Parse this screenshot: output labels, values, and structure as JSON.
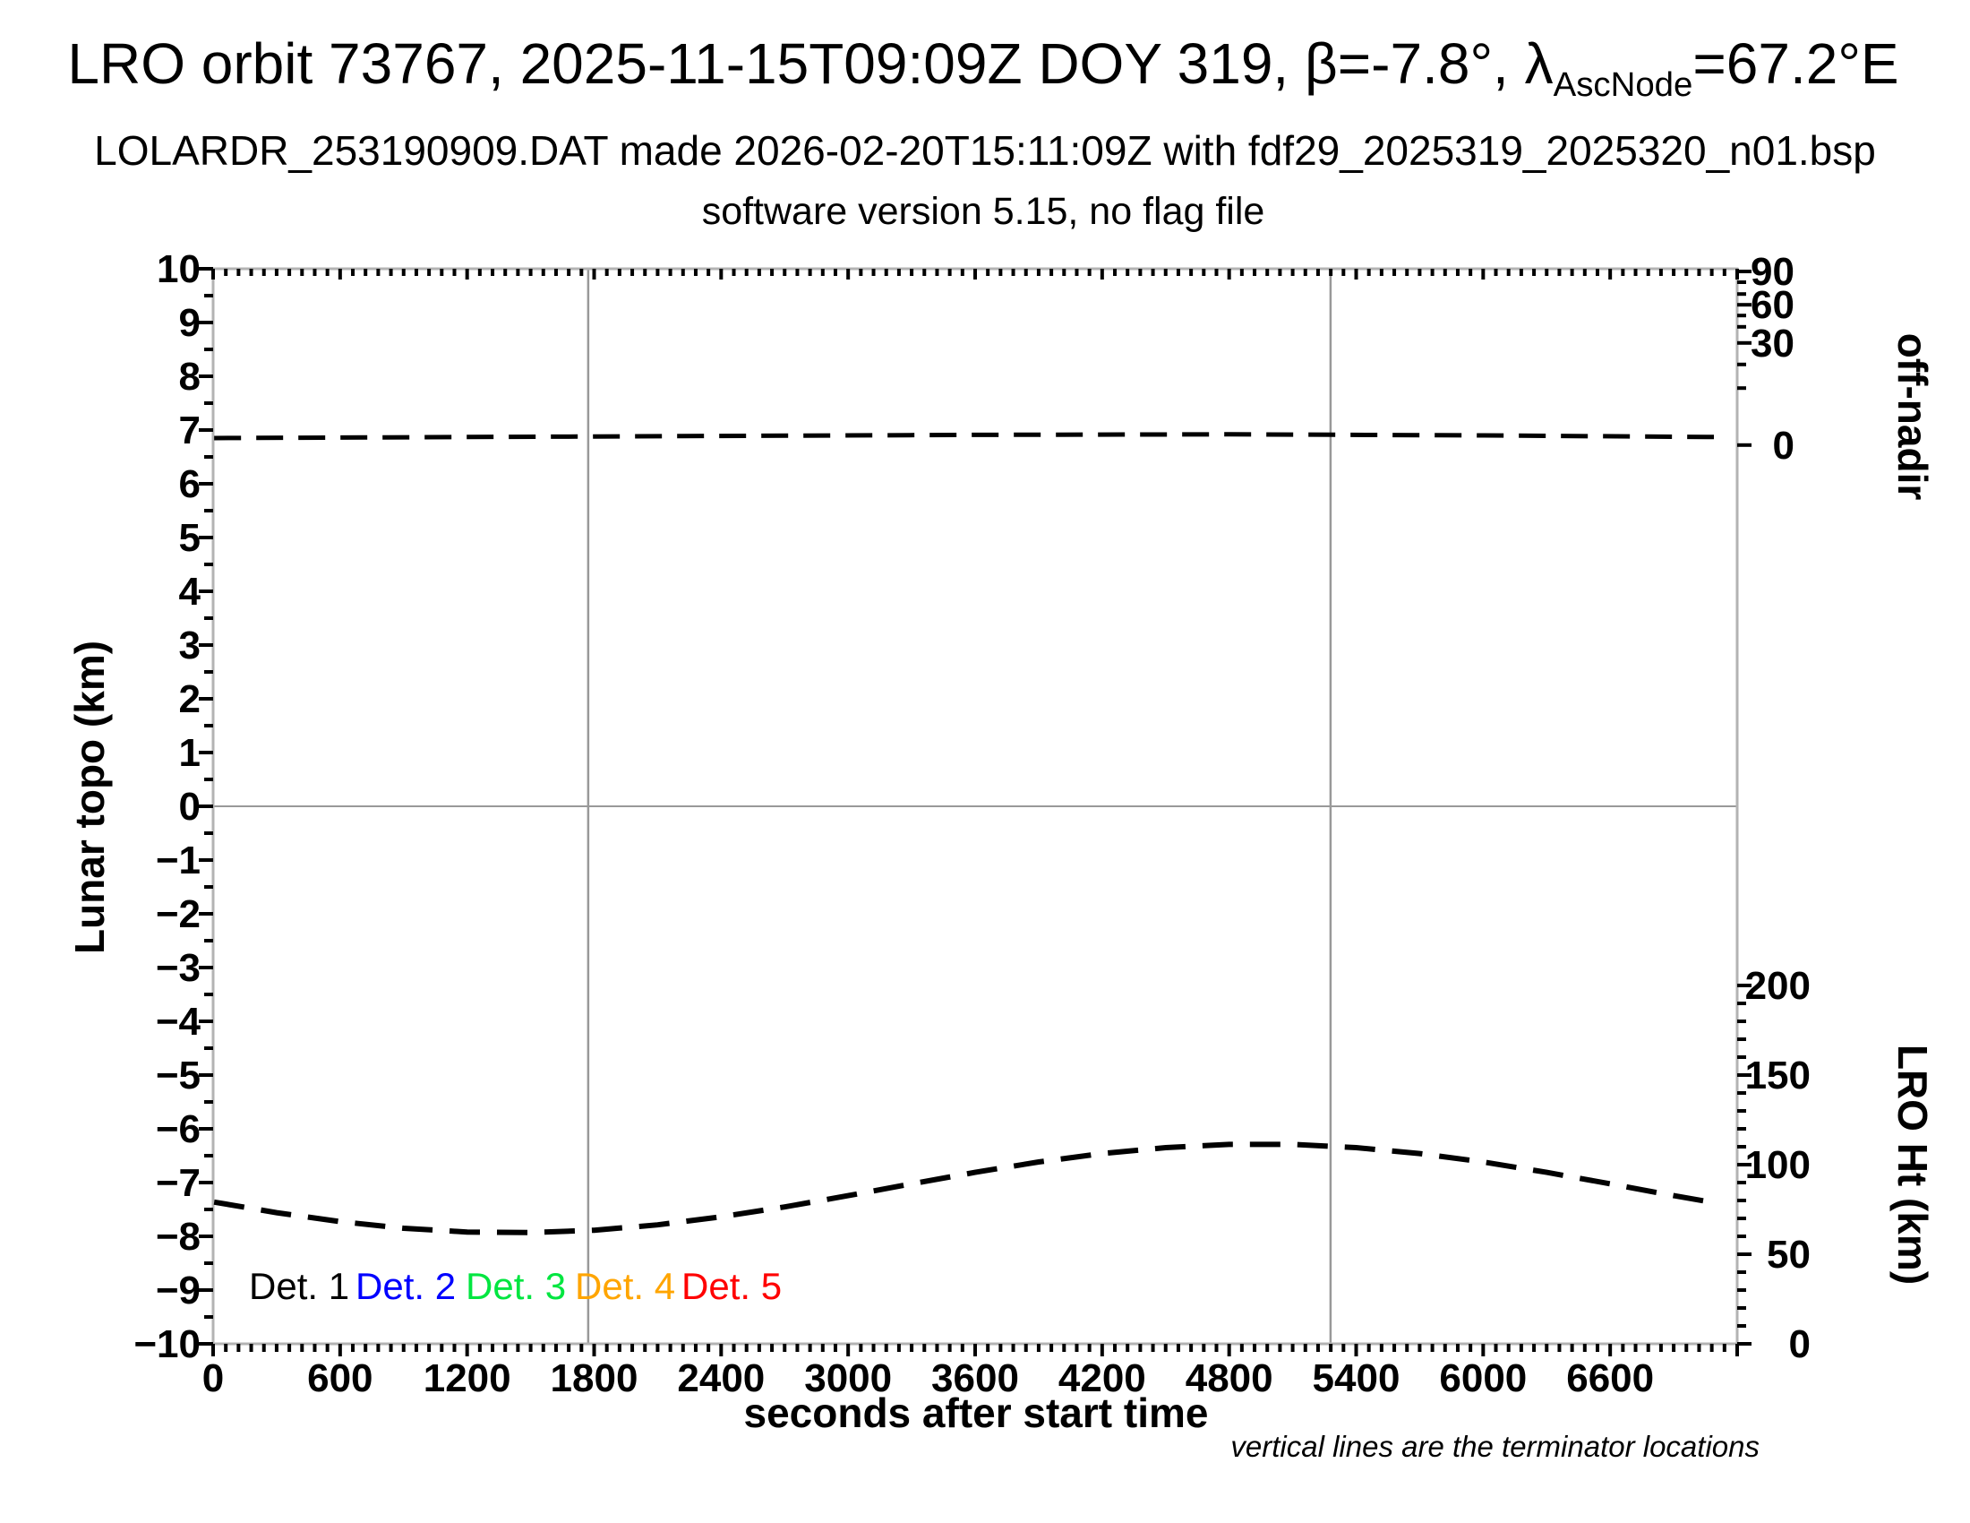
{
  "header": {
    "title_before": "LRO orbit 73767, 2025-11-15T09:09Z DOY 319, β=-7.8°, λ",
    "title_subscript": "AscNode",
    "title_after": "=67.2°E",
    "subtitle": "LOLARDR_253190909.DAT made 2026-02-20T15:11:09Z with fdf29_2025319_2025320_n01.bsp",
    "subtitle2": "software version 5.15, no flag file"
  },
  "footnote": "vertical lines are the terminator locations",
  "legend": [
    {
      "label": "Det. 1",
      "color": "#000000"
    },
    {
      "label": "Det. 2",
      "color": "#0000ff"
    },
    {
      "label": "Det. 3",
      "color": "#00e640"
    },
    {
      "label": "Det. 4",
      "color": "#ffa500"
    },
    {
      "label": "Det. 5",
      "color": "#ff0000"
    }
  ],
  "chart_data": {
    "type": "line",
    "xlabel": "seconds after start time",
    "ylabel_left": "Lunar topo (km)",
    "ylabel_right_top": "off-nadir",
    "ylabel_right_bottom": "LRO Ht (km)",
    "xlim": [
      0,
      7200
    ],
    "ylim_left": [
      -10,
      10
    ],
    "x_major_step": 600,
    "x_minor_step": 60,
    "y_major_step": 1,
    "y_minor_step": 0.5,
    "grid": "zero-line and terminator verticals only",
    "frame_color": "#b3b3b3",
    "grid_color": "#999999",
    "x_tick_labels": [
      0,
      600,
      1200,
      1800,
      2400,
      3000,
      3600,
      4200,
      4800,
      5400,
      6000,
      6600
    ],
    "y_tick_labels": [
      10,
      9,
      8,
      7,
      6,
      5,
      4,
      3,
      2,
      1,
      0,
      -1,
      -2,
      -3,
      -4,
      -5,
      -6,
      -7,
      -8,
      -9,
      -10
    ],
    "terminator_lines_s": [
      1772,
      5279
    ],
    "offnadir_ticks": [
      {
        "deg": 90,
        "u": 9.95,
        "labeled": true
      },
      {
        "deg": 80,
        "u": 9.75,
        "labeled": false
      },
      {
        "deg": 70,
        "u": 9.53,
        "labeled": false
      },
      {
        "deg": 60,
        "u": 9.33,
        "labeled": true
      },
      {
        "deg": 50,
        "u": 9.13,
        "labeled": false
      },
      {
        "deg": 40,
        "u": 8.92,
        "labeled": false
      },
      {
        "deg": 30,
        "u": 8.62,
        "labeled": true
      },
      {
        "deg": 20,
        "u": 8.22,
        "labeled": false
      },
      {
        "deg": 10,
        "u": 7.78,
        "labeled": false
      },
      {
        "deg": 0,
        "u": 6.72,
        "labeled": true
      }
    ],
    "lro_ht_axis": {
      "km_per_left_unit": 30,
      "km_at_bottom": 0,
      "max_km": 200,
      "major_step_km": 50,
      "minor_step_km": 10,
      "tick_labels_km": [
        200,
        150,
        100,
        50,
        0
      ]
    },
    "series": [
      {
        "name": "off-nadir angle",
        "color": "#000000",
        "style": "dashed",
        "approx_value_deg": 1.4,
        "points_u": [
          [
            5,
            6.85
          ],
          [
            1200,
            6.87
          ],
          [
            2400,
            6.89
          ],
          [
            3600,
            6.91
          ],
          [
            4800,
            6.92
          ],
          [
            6000,
            6.9
          ],
          [
            7090,
            6.87
          ]
        ]
      },
      {
        "name": "LRO height",
        "color": "#000000",
        "style": "dashed",
        "points_km": [
          [
            5,
            79.1
          ],
          [
            300,
            73.2
          ],
          [
            600,
            68.2
          ],
          [
            900,
            64.5
          ],
          [
            1200,
            62.4
          ],
          [
            1500,
            62.1
          ],
          [
            1800,
            63.4
          ],
          [
            2100,
            66.4
          ],
          [
            2400,
            70.9
          ],
          [
            2700,
            76.4
          ],
          [
            3000,
            82.7
          ],
          [
            3300,
            89.3
          ],
          [
            3600,
            95.7
          ],
          [
            3900,
            101.5
          ],
          [
            4200,
            106.2
          ],
          [
            4500,
            109.5
          ],
          [
            4800,
            111.3
          ],
          [
            5100,
            111.3
          ],
          [
            5400,
            109.5
          ],
          [
            5700,
            106.2
          ],
          [
            6000,
            101.5
          ],
          [
            6300,
            95.7
          ],
          [
            6600,
            89.3
          ],
          [
            6900,
            82.7
          ],
          [
            7095,
            78.7
          ]
        ]
      }
    ]
  }
}
